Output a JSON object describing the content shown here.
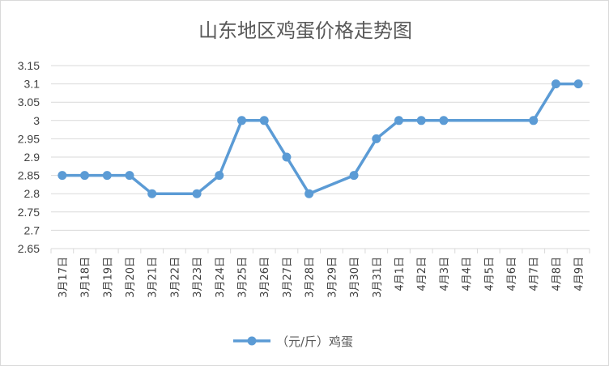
{
  "chart_data": {
    "type": "line",
    "title": "山东地区鸡蛋价格走势图",
    "xlabel": "",
    "ylabel": "",
    "ylim": [
      2.65,
      3.15
    ],
    "yticks": [
      "3.15",
      "3.1",
      "3.05",
      "3",
      "2.95",
      "2.9",
      "2.85",
      "2.8",
      "2.75",
      "2.7",
      "2.65"
    ],
    "ytick_values": [
      3.15,
      3.1,
      3.05,
      3.0,
      2.95,
      2.9,
      2.85,
      2.8,
      2.75,
      2.7,
      2.65
    ],
    "grid": true,
    "legend_position": "bottom",
    "categories": [
      "3月17日",
      "3月18日",
      "3月19日",
      "3月20日",
      "3月21日",
      "3月22日",
      "3月23日",
      "3月24日",
      "3月25日",
      "3月26日",
      "3月27日",
      "3月28日",
      "3月29日",
      "3月30日",
      "3月31日",
      "4月1日",
      "4月2日",
      "4月3日",
      "4月4日",
      "4月5日",
      "4月6日",
      "4月7日",
      "4月8日",
      "4月9日"
    ],
    "series": [
      {
        "name": "（元/斤）鸡蛋",
        "color": "#5b9bd5",
        "values": [
          2.85,
          2.85,
          2.85,
          2.85,
          2.8,
          null,
          2.8,
          2.85,
          3.0,
          3.0,
          2.9,
          2.8,
          null,
          2.85,
          2.95,
          3.0,
          3.0,
          3.0,
          null,
          null,
          null,
          3.0,
          3.1,
          3.1
        ]
      }
    ]
  }
}
